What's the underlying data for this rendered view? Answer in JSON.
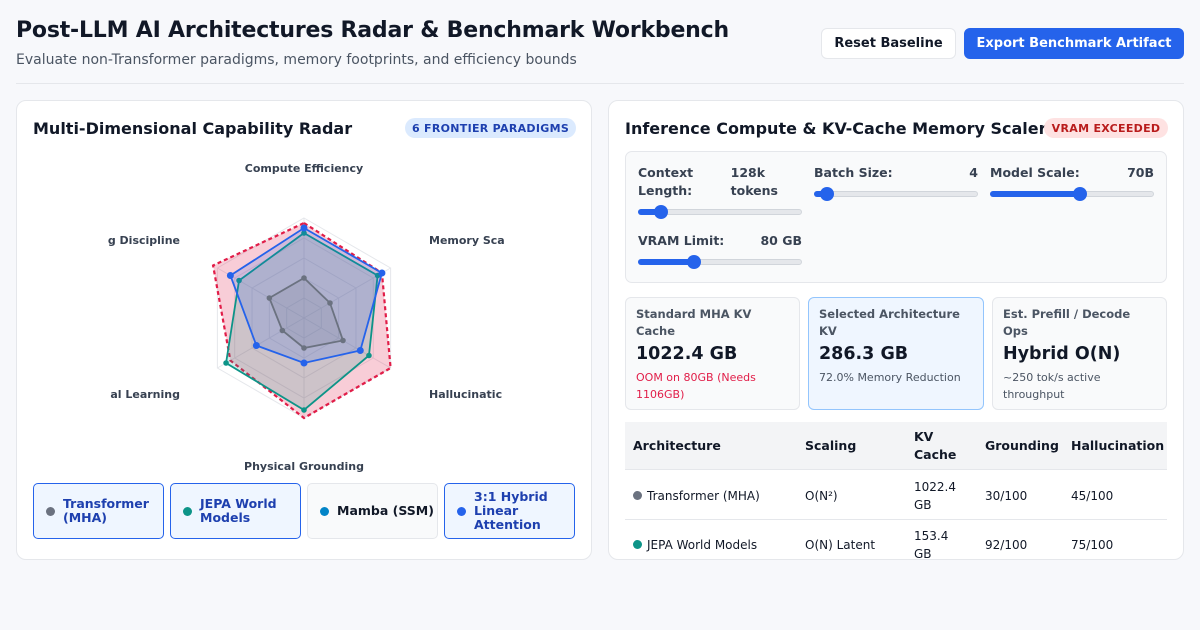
{
  "header": {
    "title": "Post-LLM AI Architectures Radar & Benchmark Workbench",
    "subtitle": "Evaluate non-Transformer paradigms, memory footprints, and efficiency bounds",
    "reset_label": "Reset Baseline",
    "export_label": "Export Benchmark Artifact"
  },
  "radar_card": {
    "title": "Multi-Dimensional Capability Radar",
    "badge": "6 FRONTIER PARADIGMS",
    "axes": [
      "Compute Efficiency",
      "Memory Scaling",
      "Hallucination",
      "Physical Grounding",
      "Continual Learning",
      "Reasoning Discipline"
    ],
    "axis_display": [
      "Compute Efficiency",
      "Memory Sca",
      "Hallucinatic",
      "Physical Grounding",
      "al Learning",
      "g Discipline"
    ],
    "legend": [
      {
        "name": "Transformer (MHA)",
        "color": "#6b7280",
        "active": true
      },
      {
        "name": "JEPA World Models",
        "color": "#0d9488",
        "active": true
      },
      {
        "name": "Mamba (SSM)",
        "color": "#0284c7",
        "active": false
      },
      {
        "name": "3:1 Hybrid Linear Attention",
        "color": "#2563eb",
        "active": true
      }
    ]
  },
  "chart_data": {
    "type": "radar",
    "axes": [
      "Compute Efficiency",
      "Memory Scaling",
      "Hallucination",
      "Physical Grounding",
      "Continual Learning",
      "Reasoning Discipline"
    ],
    "range": [
      0,
      100
    ],
    "series": [
      {
        "name": "Transformer (MHA)",
        "color": "#6b7280",
        "values": [
          40,
          30,
          45,
          30,
          25,
          40
        ]
      },
      {
        "name": "JEPA World Models",
        "color": "#0d9488",
        "values": [
          85,
          85,
          75,
          92,
          90,
          75
        ]
      },
      {
        "name": "3:1 Hybrid Linear Attention",
        "color": "#2563eb",
        "values": [
          90,
          90,
          65,
          45,
          55,
          85
        ]
      },
      {
        "color": "#e11d48",
        "dashed": true,
        "values": [
          95,
          90,
          100,
          100,
          85,
          105
        ]
      }
    ]
  },
  "scaler_card": {
    "title": "Inference Compute & KV-Cache Memory Scaler",
    "badge": "VRAM EXCEEDED",
    "controls": [
      {
        "label_line1": "Context",
        "label_line2": "Length:",
        "value_line1": "128k",
        "value_line2": "tokens",
        "fraction": 0.14
      },
      {
        "label_line1": "Batch Size:",
        "label_line2": "",
        "value_line1": "4",
        "value_line2": "",
        "fraction": 0.08
      },
      {
        "label_line1": "Model Scale:",
        "label_line2": "",
        "value_line1": "70B",
        "value_line2": "",
        "fraction": 0.55
      },
      {
        "label_line1": "VRAM Limit:",
        "label_line2": "",
        "value_line1": "80 GB",
        "value_line2": "",
        "fraction": 0.34
      }
    ],
    "metrics": [
      {
        "label": "Standard MHA KV Cache",
        "value": "1022.4 GB",
        "sub": "OOM on 80GB (Needs 1106GB)"
      },
      {
        "label": "Selected Architecture KV",
        "value": "286.3 GB",
        "sub": "72.0% Memory Reduction"
      },
      {
        "label": "Est. Prefill / Decode Ops",
        "value": "Hybrid O(N)",
        "sub": "~250 tok/s active throughput"
      }
    ],
    "table": {
      "headers": [
        "Architecture",
        "Scaling",
        "KV Cache",
        "Grounding",
        "Hallucination"
      ],
      "rows": [
        {
          "color": "#6b7280",
          "cells": [
            "Transformer (MHA)",
            "O(N²)",
            "1022.4 GB",
            "30/100",
            "45/100"
          ]
        },
        {
          "color": "#0d9488",
          "cells": [
            "JEPA World Models",
            "O(N) Latent",
            "153.4 GB",
            "92/100",
            "75/100"
          ]
        }
      ]
    }
  }
}
